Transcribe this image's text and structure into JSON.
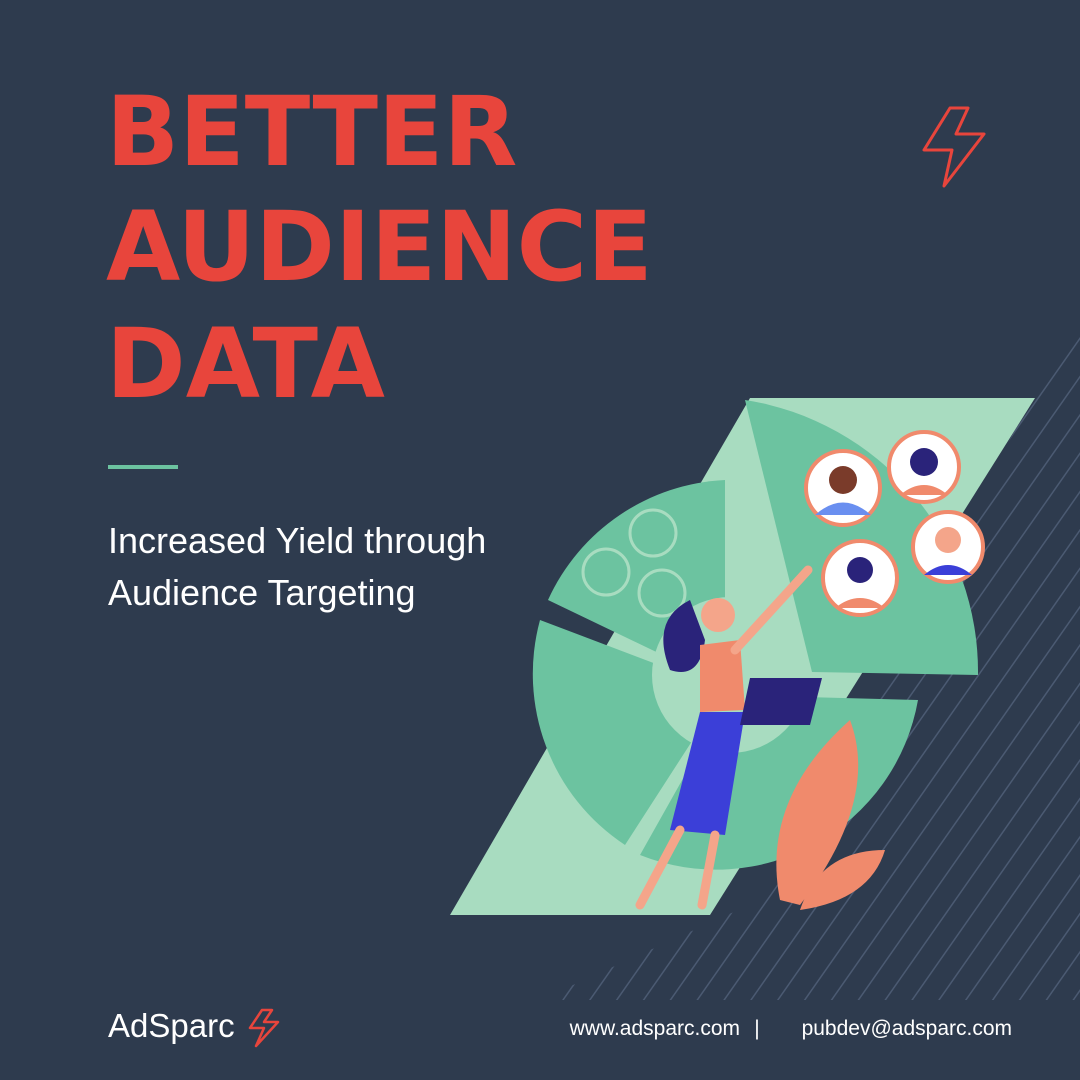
{
  "header": {
    "title_lines": [
      "BETTER",
      "AUDIENCE",
      "DATA"
    ],
    "subtitle_lines": [
      "Increased Yield through",
      "Audience Targeting"
    ]
  },
  "footer": {
    "logo": "AdSparc",
    "website": "www.adsparc.com",
    "separator": "|",
    "email": "pubdev@adsparc.com"
  }
}
